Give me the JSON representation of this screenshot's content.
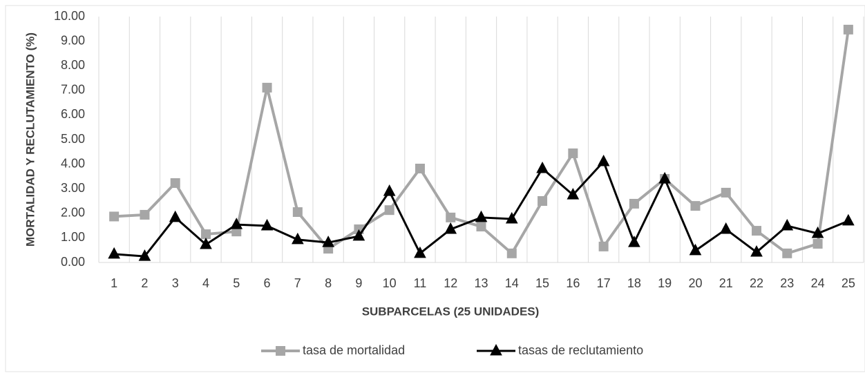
{
  "chart_data": {
    "type": "line",
    "x_label": "SUBPARCELAS (25 UNIDADES)",
    "y_label": "MORTALIDAD Y RECLUTAMIENTO  (%)",
    "categories": [
      "1",
      "2",
      "3",
      "4",
      "5",
      "6",
      "7",
      "8",
      "9",
      "10",
      "11",
      "12",
      "13",
      "14",
      "15",
      "16",
      "17",
      "18",
      "19",
      "20",
      "21",
      "22",
      "23",
      "24",
      "25"
    ],
    "series": [
      {
        "name": "tasa de mortalidad",
        "color": "#a6a6a6",
        "marker": "square",
        "values": [
          1.87,
          1.94,
          3.23,
          1.15,
          1.26,
          7.11,
          2.05,
          0.56,
          1.35,
          2.13,
          3.82,
          1.83,
          1.46,
          0.37,
          2.5,
          4.44,
          0.65,
          2.39,
          3.4,
          2.3,
          2.84,
          1.29,
          0.37,
          0.76,
          9.47
        ]
      },
      {
        "name": "tasas de reclutamiento",
        "color": "#000000",
        "marker": "triangle",
        "values": [
          0.34,
          0.25,
          1.83,
          0.73,
          1.54,
          1.49,
          0.93,
          0.81,
          1.07,
          2.89,
          0.37,
          1.35,
          1.83,
          1.77,
          3.82,
          2.75,
          4.1,
          0.81,
          3.4,
          0.48,
          1.35,
          0.42,
          1.49,
          1.18,
          1.69
        ]
      }
    ],
    "ylim": [
      0,
      10
    ],
    "yticks": [
      {
        "value": 0,
        "label": "0.00"
      },
      {
        "value": 1,
        "label": "1.00"
      },
      {
        "value": 2,
        "label": "2.00"
      },
      {
        "value": 3,
        "label": "3.00"
      },
      {
        "value": 4,
        "label": "4.00"
      },
      {
        "value": 5,
        "label": "5.00"
      },
      {
        "value": 6,
        "label": "6.00"
      },
      {
        "value": 7,
        "label": "7.00"
      },
      {
        "value": 8,
        "label": "8.00"
      },
      {
        "value": 9,
        "label": "9.00"
      },
      {
        "value": 10,
        "label": "10.00"
      }
    ],
    "grid": "vertical",
    "legend": "bottom"
  }
}
